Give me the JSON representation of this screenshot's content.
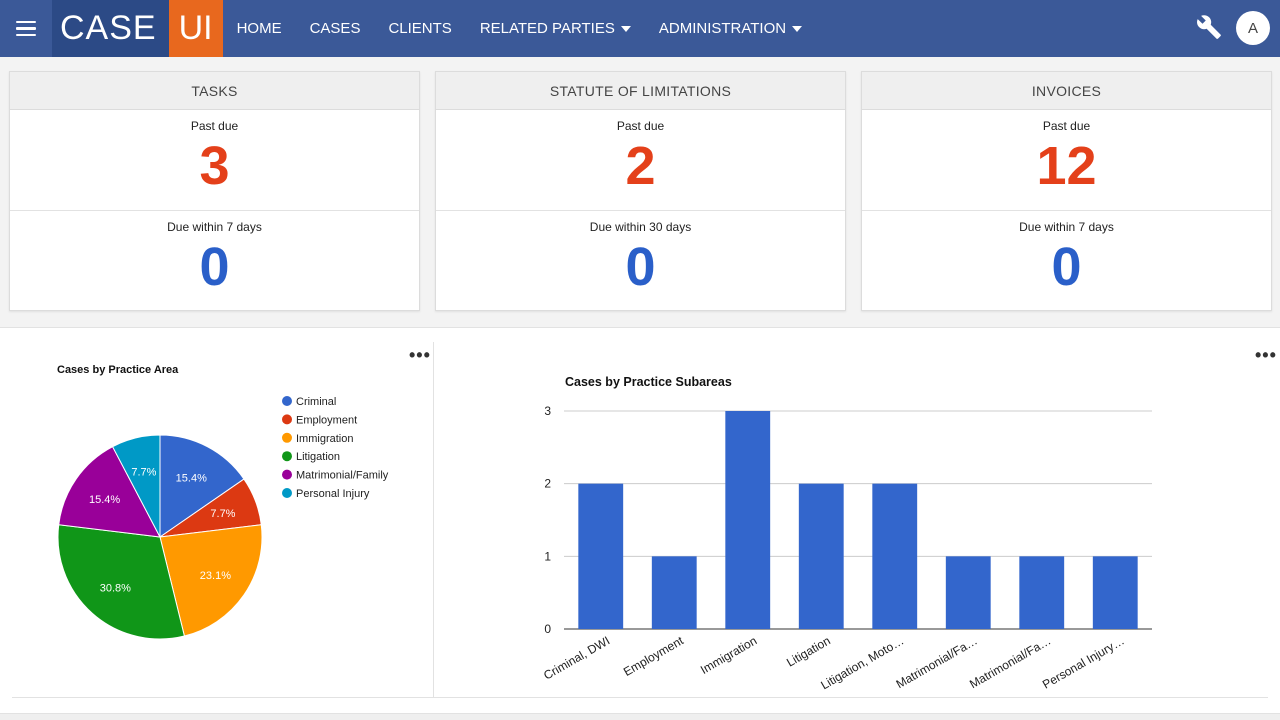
{
  "nav": {
    "logo_case": "CASE",
    "logo_ui": "UI",
    "items": [
      {
        "label": "HOME",
        "dropdown": false
      },
      {
        "label": "CASES",
        "dropdown": false
      },
      {
        "label": "CLIENTS",
        "dropdown": false
      },
      {
        "label": "RELATED PARTIES",
        "dropdown": true
      },
      {
        "label": "ADMINISTRATION",
        "dropdown": true
      }
    ],
    "avatar_letter": "A",
    "icons": [
      "hamburger-menu-icon",
      "wrench-icon"
    ],
    "colors": {
      "bar": "#3b5998",
      "logo_case": "#2c4a86",
      "logo_ui": "#e8681e"
    }
  },
  "cards": [
    {
      "title": "TASKS",
      "top_label": "Past due",
      "top_value": "3",
      "bottom_label": "Due within 7 days",
      "bottom_value": "0"
    },
    {
      "title": "STATUTE OF LIMITATIONS",
      "top_label": "Past due",
      "top_value": "2",
      "bottom_label": "Due within 30 days",
      "bottom_value": "0"
    },
    {
      "title": "INVOICES",
      "top_label": "Past due",
      "top_value": "12",
      "bottom_label": "Due within 7 days",
      "bottom_value": "0"
    }
  ],
  "colors": {
    "past_due": "#e4401a",
    "due_within": "#2a5fc9"
  },
  "chart_data": [
    {
      "type": "pie",
      "title": "Cases by Practice Area",
      "legend_position": "right",
      "slices": [
        {
          "label": "Criminal",
          "value": 15.4,
          "display": "15.4%",
          "color": "#3366cc"
        },
        {
          "label": "Employment",
          "value": 7.7,
          "display": "7.7%",
          "color": "#dc3912"
        },
        {
          "label": "Immigration",
          "value": 23.1,
          "display": "23.1%",
          "color": "#ff9900"
        },
        {
          "label": "Litigation",
          "value": 30.8,
          "display": "30.8%",
          "color": "#109618"
        },
        {
          "label": "Matrimonial/Family",
          "value": 15.4,
          "display": "15.4%",
          "color": "#990099"
        },
        {
          "label": "Personal Injury",
          "value": 7.7,
          "display": "7.7%",
          "color": "#0099c6"
        }
      ]
    },
    {
      "type": "bar",
      "title": "Cases by Practice Subareas",
      "categories": [
        "Criminal, DWI",
        "Employment",
        "Immigration",
        "Litigation",
        "Litigation, Moto…",
        "Matrimonial/Fa…",
        "Matrimonial/Fa…",
        "Personal Injury…"
      ],
      "values": [
        2,
        1,
        3,
        2,
        2,
        1,
        1,
        1
      ],
      "ylim": [
        0,
        3
      ],
      "yticks": [
        "0",
        "1",
        "2",
        "3"
      ],
      "grid": true,
      "color": "#3366cc"
    }
  ]
}
